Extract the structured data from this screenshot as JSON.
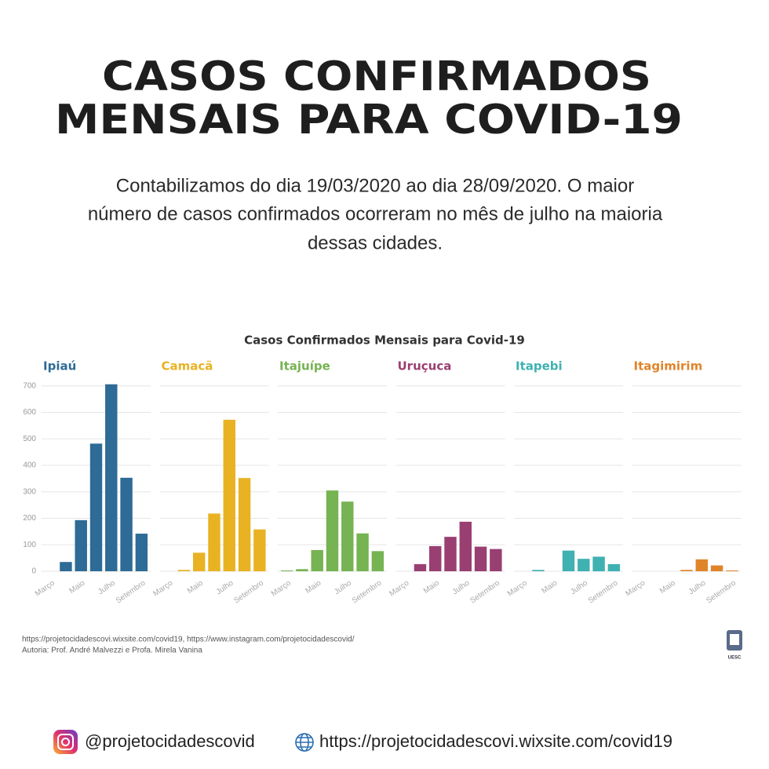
{
  "header": {
    "title": [
      "CASOS CONFIRMADOS",
      "MENSAIS PARA COVID-19"
    ],
    "text": [
      "Contabilizamos do dia 19/03/2020 ao dia 28/09/2020. O maior",
      "número de casos confirmados ocorreram no mês de julho na maioria",
      "dessas cidades."
    ]
  },
  "chart_data": {
    "type": "bar",
    "title": "Casos Confirmados Mensais para Covid-19",
    "categories": [
      "Março",
      null,
      "Maio",
      null,
      "Julho",
      null,
      "Setembro"
    ],
    "series": [
      {
        "name": "Ipiaú",
        "color": "#2e6b96",
        "values": [
          0,
          35,
          193,
          482,
          706,
          353,
          142
        ]
      },
      {
        "name": "Camacã",
        "color": "#e8b223",
        "values": [
          0,
          5,
          70,
          218,
          572,
          352,
          158
        ]
      },
      {
        "name": "Itajuípe",
        "color": "#76b352",
        "values": [
          3,
          8,
          80,
          305,
          263,
          143,
          76
        ]
      },
      {
        "name": "Uruçuca",
        "color": "#9a3f72",
        "values": [
          0,
          27,
          95,
          130,
          187,
          93,
          84
        ]
      },
      {
        "name": "Itapebi",
        "color": "#3fb1b1",
        "values": [
          0,
          5,
          0,
          78,
          47,
          55,
          27
        ]
      },
      {
        "name": "Itagimirim",
        "color": "#e0842a",
        "values": [
          0,
          0,
          0,
          5,
          45,
          22,
          3
        ]
      }
    ],
    "ylim": [
      0,
      720
    ],
    "yticks": [
      0,
      100,
      200,
      300,
      400,
      500,
      600,
      700
    ],
    "grid": true,
    "source": [
      "https://projetocidadescovi.wixsite.com/covid19, https://www.instagram.com/projetocidadescovid/",
      "Autoria: Prof. André Malvezzi e Profa. Mirela Vanina"
    ],
    "logo_text": "UESC"
  },
  "footer": {
    "instagram": "@projetocidadescovid",
    "website": "https://projetocidadescovi.wixsite.com/covid19"
  }
}
